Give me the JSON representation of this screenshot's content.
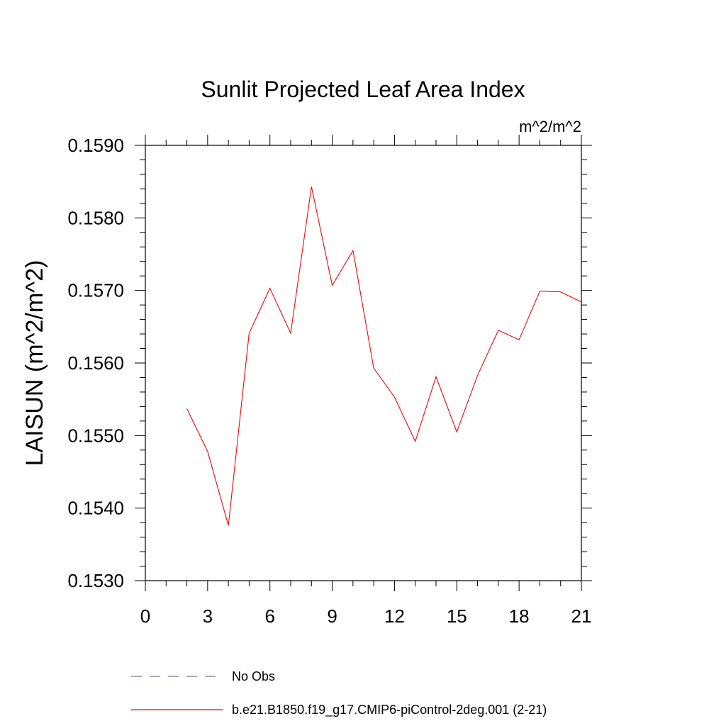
{
  "chart_data": {
    "type": "line",
    "title": "Sunlit Projected Leaf Area Index",
    "units": "m^2/m^2",
    "ylabel": "LAISUN  (m^2/m^2)",
    "xlabel": "",
    "xlim": [
      0,
      21
    ],
    "ylim": [
      0.153,
      0.159
    ],
    "x_ticks": [
      0,
      3,
      6,
      9,
      12,
      15,
      18,
      21
    ],
    "x_tick_labels": [
      "0",
      "3",
      "6",
      "9",
      "12",
      "15",
      "18",
      "21"
    ],
    "y_ticks": [
      0.153,
      0.154,
      0.155,
      0.156,
      0.157,
      0.158,
      0.159
    ],
    "y_tick_labels": [
      "0.1530",
      "0.1540",
      "0.1550",
      "0.1560",
      "0.1570",
      "0.1580",
      "0.1590"
    ],
    "grid": false,
    "legend_position": "bottom",
    "series": [
      {
        "name": "b.e21.B1850.f19_g17.CMIP6-piControl-2deg.001 (2-21)",
        "color": "#ff0000",
        "style": "solid",
        "x": [
          2,
          3,
          4,
          5,
          6,
          7,
          8,
          9,
          10,
          11,
          12,
          13,
          14,
          15,
          16,
          17,
          18,
          19,
          20,
          21
        ],
        "values": [
          0.15537,
          0.15478,
          0.15376,
          0.15641,
          0.15703,
          0.15641,
          0.15843,
          0.15707,
          0.15755,
          0.15593,
          0.15553,
          0.15492,
          0.15581,
          0.15505,
          0.15583,
          0.15645,
          0.15632,
          0.15699,
          0.15698,
          0.15684
        ]
      }
    ],
    "legend": [
      {
        "label": "No Obs",
        "color": "#7b6fae",
        "style": "dashed"
      },
      {
        "label": "b.e21.B1850.f19_g17.CMIP6-piControl-2deg.001 (2-21)",
        "color": "#ff0000",
        "style": "solid"
      }
    ]
  }
}
